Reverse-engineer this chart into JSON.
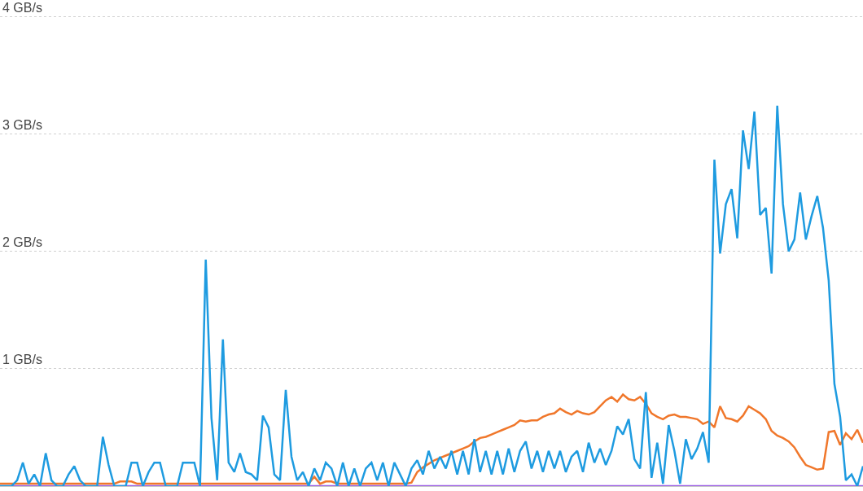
{
  "chart_data": {
    "type": "line",
    "categories": [
      null,
      null,
      null,
      null,
      null,
      null,
      null,
      null,
      null,
      null,
      null,
      null,
      null,
      null,
      null,
      null,
      null,
      null,
      null,
      null,
      null,
      null,
      null,
      null,
      null,
      null,
      null,
      null,
      null,
      null,
      null,
      null,
      null,
      null,
      null,
      null,
      null,
      null,
      null,
      null,
      null,
      null,
      null,
      null,
      null,
      null,
      null,
      null,
      null,
      null,
      null,
      null,
      null,
      null,
      null,
      null,
      null,
      null,
      null,
      null,
      null,
      null,
      null,
      null,
      null,
      null,
      null,
      null,
      null,
      null,
      null,
      null,
      null,
      null,
      null,
      null,
      null,
      null,
      null,
      null,
      null,
      null,
      null,
      null,
      null,
      null,
      null,
      null,
      null,
      null,
      null,
      null,
      null,
      null,
      null,
      null,
      null,
      null,
      null,
      null,
      null,
      null,
      null,
      null,
      null,
      null,
      null,
      null,
      null,
      null,
      null,
      null,
      null,
      null,
      null,
      null,
      null,
      null,
      null,
      null,
      null,
      null,
      null,
      null,
      null,
      null,
      null,
      null,
      null,
      null,
      null,
      null,
      null,
      null,
      null,
      null,
      null,
      null,
      null,
      null,
      null,
      null,
      null,
      null,
      null,
      null,
      null,
      null,
      null,
      null,
      null,
      null
    ],
    "series": [
      {
        "color": "#9b5de5",
        "values": [
          0,
          0,
          0,
          0,
          0,
          0,
          0,
          0,
          0,
          0,
          0,
          0,
          0,
          0,
          0,
          0,
          0,
          0,
          0,
          0,
          0,
          0,
          0,
          0,
          0,
          0,
          0,
          0,
          0,
          0,
          0,
          0,
          0,
          0,
          0,
          0,
          0,
          0,
          0,
          0,
          0,
          0,
          0,
          0,
          0,
          0,
          0,
          0,
          0,
          0,
          0,
          0,
          0,
          0,
          0,
          0,
          0,
          0,
          0,
          0,
          0,
          0,
          0,
          0,
          0,
          0,
          0,
          0,
          0,
          0,
          0,
          0,
          0,
          0,
          0,
          0,
          0,
          0,
          0,
          0,
          0,
          0,
          0,
          0,
          0,
          0,
          0,
          0,
          0,
          0,
          0,
          0,
          0,
          0,
          0,
          0,
          0,
          0,
          0,
          0,
          0,
          0,
          0,
          0,
          0,
          0,
          0,
          0,
          0,
          0,
          0,
          0,
          0,
          0,
          0,
          0,
          0,
          0,
          0,
          0,
          0,
          0,
          0,
          0,
          0,
          0,
          0,
          0,
          0,
          0,
          0,
          0,
          0,
          0,
          0,
          0,
          0,
          0,
          0,
          0,
          0,
          0,
          0,
          0,
          0,
          0,
          0,
          0,
          0,
          0,
          0,
          0
        ]
      },
      {
        "color": "#f0772b",
        "values": [
          0.02,
          0.02,
          0.02,
          0.02,
          0.02,
          0.02,
          0.02,
          0.02,
          0.02,
          0.02,
          0.02,
          0.02,
          0.02,
          0.02,
          0.02,
          0.02,
          0.02,
          0.02,
          0.02,
          0.02,
          0.02,
          0.04,
          0.04,
          0.04,
          0.02,
          0.02,
          0.02,
          0.02,
          0.02,
          0.02,
          0.02,
          0.02,
          0.02,
          0.02,
          0.02,
          0.02,
          0.02,
          0.02,
          0.02,
          0.02,
          0.02,
          0.02,
          0.02,
          0.02,
          0.02,
          0.02,
          0.02,
          0.02,
          0.02,
          0.02,
          0.02,
          0.02,
          0.02,
          0.02,
          0.02,
          0.08,
          0.02,
          0.04,
          0.04,
          0.02,
          0.02,
          0.02,
          0.02,
          0.02,
          0.02,
          0.02,
          0.02,
          0.02,
          0.02,
          0.02,
          0.02,
          0.02,
          0.03,
          0.12,
          0.16,
          0.19,
          0.22,
          0.24,
          0.26,
          0.28,
          0.3,
          0.32,
          0.34,
          0.38,
          0.41,
          0.42,
          0.44,
          0.46,
          0.48,
          0.5,
          0.52,
          0.56,
          0.55,
          0.56,
          0.56,
          0.59,
          0.61,
          0.62,
          0.66,
          0.63,
          0.61,
          0.64,
          0.62,
          0.61,
          0.63,
          0.68,
          0.73,
          0.76,
          0.72,
          0.78,
          0.74,
          0.73,
          0.76,
          0.7,
          0.62,
          0.59,
          0.57,
          0.6,
          0.61,
          0.59,
          0.59,
          0.58,
          0.57,
          0.53,
          0.55,
          0.5,
          0.68,
          0.58,
          0.57,
          0.55,
          0.6,
          0.68,
          0.65,
          0.62,
          0.57,
          0.47,
          0.43,
          0.41,
          0.38,
          0.33,
          0.25,
          0.18,
          0.16,
          0.14,
          0.15,
          0.46,
          0.47,
          0.35,
          0.45,
          0.4,
          0.48,
          0.37
        ]
      },
      {
        "color": "#1e9be0",
        "values": [
          0,
          0,
          0,
          0.05,
          0.2,
          0.02,
          0.1,
          0,
          0.28,
          0.05,
          0,
          0,
          0.1,
          0.17,
          0.05,
          0,
          0,
          0,
          0.42,
          0.18,
          0,
          0,
          0,
          0.2,
          0.2,
          0,
          0.12,
          0.2,
          0.2,
          0,
          0,
          0,
          0.2,
          0.2,
          0.2,
          0,
          1.93,
          0.58,
          0.05,
          1.25,
          0.2,
          0.12,
          0.28,
          0.12,
          0.1,
          0.05,
          0.6,
          0.5,
          0.1,
          0.05,
          0.82,
          0.25,
          0.05,
          0.12,
          0,
          0.15,
          0.05,
          0.2,
          0.15,
          0,
          0.2,
          0,
          0.15,
          0,
          0.15,
          0.2,
          0.05,
          0.2,
          0,
          0.2,
          0.1,
          0,
          0.15,
          0.22,
          0.1,
          0.3,
          0.15,
          0.25,
          0.15,
          0.3,
          0.1,
          0.3,
          0.1,
          0.4,
          0.12,
          0.3,
          0.1,
          0.3,
          0.1,
          0.32,
          0.12,
          0.3,
          0.38,
          0.15,
          0.3,
          0.12,
          0.3,
          0.15,
          0.3,
          0.12,
          0.25,
          0.3,
          0.12,
          0.37,
          0.2,
          0.32,
          0.18,
          0.3,
          0.51,
          0.44,
          0.57,
          0.23,
          0.15,
          0.8,
          0.07,
          0.37,
          0.02,
          0.52,
          0.3,
          0.02,
          0.4,
          0.23,
          0.32,
          0.46,
          0.2,
          2.78,
          1.98,
          2.4,
          2.53,
          2.11,
          3.03,
          2.7,
          3.19,
          2.31,
          2.37,
          1.81,
          3.24,
          2.4,
          2.0,
          2.1,
          2.5,
          2.1,
          2.3,
          2.47,
          2.2,
          1.75,
          0.87,
          0.59,
          0.05,
          0.1,
          0,
          0.17
        ]
      }
    ],
    "ylim": [
      0,
      4.14
    ],
    "yticks": [
      {
        "value": 1,
        "label": "1 GB/s"
      },
      {
        "value": 2,
        "label": "2 GB/s"
      },
      {
        "value": 3,
        "label": "3 GB/s"
      },
      {
        "value": 4,
        "label": "4 GB/s"
      }
    ],
    "grid": "y",
    "tick_labels": "y",
    "marker": "none",
    "line_style": "solid"
  }
}
